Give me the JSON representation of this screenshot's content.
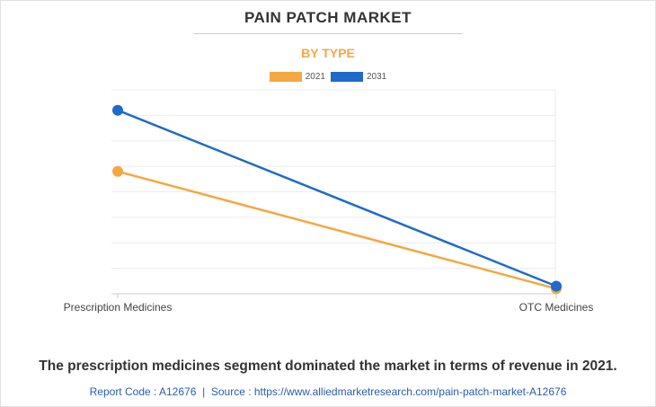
{
  "chart_data": {
    "type": "line",
    "title": "PAIN PATCH MARKET",
    "subtitle": "BY TYPE",
    "categories": [
      "Prescription Medicines",
      "OTC Medicines"
    ],
    "series": [
      {
        "name": "2021",
        "color": "#f5a742",
        "values": [
          4.8,
          0.2
        ]
      },
      {
        "name": "2031",
        "color": "#1f6bc7",
        "values": [
          7.2,
          0.3
        ]
      }
    ],
    "ylim": [
      0,
      8
    ],
    "grid": true,
    "legend": "top-center",
    "xlabel": "",
    "ylabel": ""
  },
  "caption": "The prescription medicines segment dominated the market in terms of revenue in 2021.",
  "source": {
    "code_label": "Report Code : A12676",
    "separator": "|",
    "source_label": "Source : https://www.alliedmarketresearch.com/pain-patch-market-A12676"
  }
}
